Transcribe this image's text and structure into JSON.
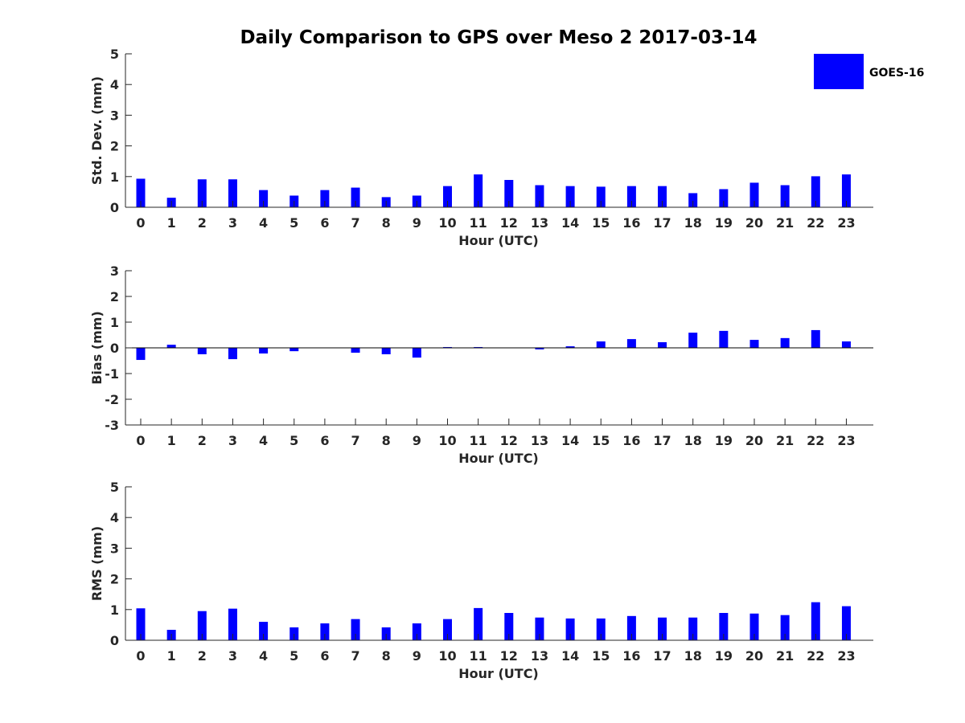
{
  "chart_data": {
    "type": "bar",
    "title": "Daily Comparison to GPS over Meso 2 2017-03-14",
    "legend": {
      "entries": [
        "GOES-16"
      ],
      "placement": "top-right",
      "color": "#0000ff"
    },
    "bar_color": "#0000ff",
    "categories": [
      "0",
      "1",
      "2",
      "3",
      "4",
      "5",
      "6",
      "7",
      "8",
      "9",
      "10",
      "11",
      "12",
      "13",
      "14",
      "15",
      "16",
      "17",
      "18",
      "19",
      "20",
      "21",
      "22",
      "23"
    ],
    "panels": [
      {
        "name": "std-dev",
        "xlabel": "Hour (UTC)",
        "ylabel": "Std. Dev. (mm)",
        "ylim": [
          0,
          5
        ],
        "yticks": [
          "0",
          "1",
          "2",
          "3",
          "4",
          "5"
        ],
        "series": [
          {
            "name": "GOES-16",
            "values": [
              0.93,
              0.31,
              0.91,
              0.91,
              0.56,
              0.38,
              0.56,
              0.64,
              0.33,
              0.38,
              0.69,
              1.07,
              0.89,
              0.72,
              0.69,
              0.67,
              0.69,
              0.69,
              0.46,
              0.59,
              0.8,
              0.72,
              1.01,
              1.07
            ]
          }
        ]
      },
      {
        "name": "bias",
        "xlabel": "Hour (UTC)",
        "ylabel": "Bias (mm)",
        "ylim": [
          -3,
          3
        ],
        "yticks": [
          "-3",
          "-2",
          "-1",
          "0",
          "1",
          "2",
          "3"
        ],
        "series": [
          {
            "name": "GOES-16",
            "values": [
              -0.47,
              0.12,
              -0.25,
              -0.44,
              -0.22,
              -0.13,
              0.0,
              -0.19,
              -0.25,
              -0.38,
              0.03,
              0.03,
              0.0,
              -0.06,
              0.06,
              0.25,
              0.34,
              0.22,
              0.59,
              0.66,
              0.31,
              0.38,
              0.69,
              0.25
            ]
          }
        ]
      },
      {
        "name": "rms",
        "xlabel": "Hour (UTC)",
        "ylabel": "RMS (mm)",
        "ylim": [
          0,
          5
        ],
        "yticks": [
          "0",
          "1",
          "2",
          "3",
          "4",
          "5"
        ],
        "series": [
          {
            "name": "GOES-16",
            "values": [
              1.04,
              0.34,
              0.95,
              1.03,
              0.6,
              0.42,
              0.55,
              0.69,
              0.42,
              0.55,
              0.69,
              1.05,
              0.89,
              0.74,
              0.71,
              0.71,
              0.79,
              0.74,
              0.74,
              0.89,
              0.87,
              0.82,
              1.24,
              1.11
            ]
          }
        ]
      }
    ]
  }
}
